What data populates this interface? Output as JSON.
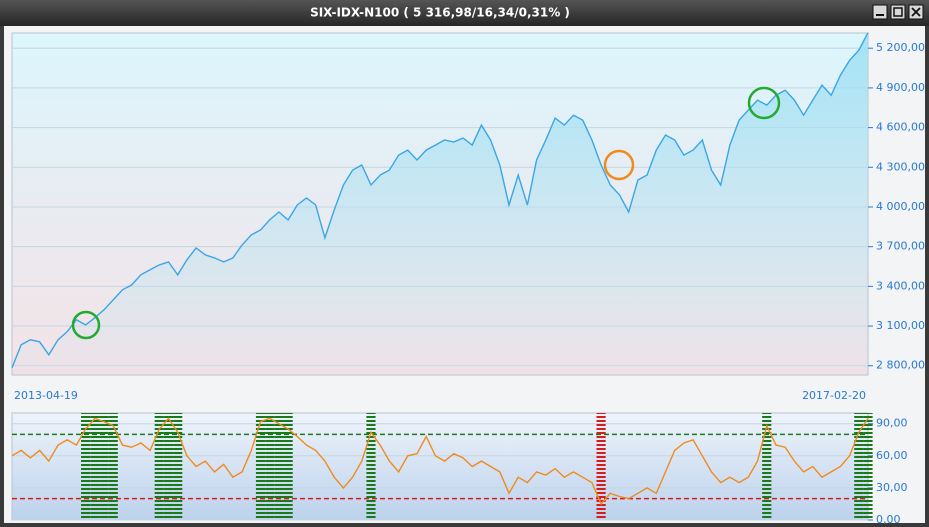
{
  "window_title": "SIX-IDX-N100 ( 5 316,98/16,34/0,31% )",
  "chart_data": [
    {
      "type": "line",
      "color": "#3aa6e6",
      "grid": true,
      "categories": [
        "2013-04-19",
        null,
        null,
        null,
        null,
        null,
        null,
        null,
        null,
        null,
        null,
        null,
        null,
        null,
        null,
        null,
        null,
        null,
        null,
        null,
        null,
        null,
        null,
        null,
        null,
        null,
        null,
        null,
        null,
        null,
        null,
        null,
        null,
        null,
        null,
        null,
        null,
        null,
        null,
        null,
        null,
        null,
        null,
        null,
        null,
        null,
        null,
        null,
        null,
        null,
        null,
        null,
        null,
        null,
        null,
        null,
        null,
        null,
        null,
        null,
        null,
        null,
        null,
        null,
        null,
        null,
        null,
        null,
        null,
        null,
        null,
        null,
        null,
        null,
        null,
        null,
        null,
        null,
        null,
        null,
        null,
        null,
        null,
        null,
        null,
        null,
        null,
        null,
        null,
        null,
        null,
        null,
        null,
        "2017-02-20"
      ],
      "values": [
        2785,
        2958,
        2996,
        2981,
        2883,
        2996,
        3057,
        3147,
        3109,
        3162,
        3223,
        3298,
        3374,
        3411,
        3487,
        3525,
        3562,
        3585,
        3487,
        3600,
        3690,
        3638,
        3615,
        3585,
        3615,
        3713,
        3789,
        3826,
        3902,
        3962,
        3902,
        4015,
        4068,
        4015,
        3766,
        3977,
        4166,
        4279,
        4317,
        4166,
        4242,
        4279,
        4392,
        4430,
        4355,
        4430,
        4468,
        4506,
        4491,
        4521,
        4468,
        4619,
        4506,
        4317,
        4015,
        4242,
        4015,
        4355,
        4506,
        4672,
        4619,
        4694,
        4657,
        4506,
        4317,
        4166,
        4091,
        3962,
        4204,
        4242,
        4430,
        4544,
        4506,
        4392,
        4430,
        4506,
        4279,
        4166,
        4468,
        4657,
        4732,
        4808,
        4770,
        4845,
        4883,
        4808,
        4694,
        4808,
        4921,
        4845,
        4996,
        5109,
        5185,
        5317
      ],
      "ylim": [
        2730,
        5315
      ],
      "yticks": [
        {
          "value": 2800,
          "label": "2 800,00"
        },
        {
          "value": 3100,
          "label": "3 100,00"
        },
        {
          "value": 3400,
          "label": "3 400,00"
        },
        {
          "value": 3700,
          "label": "3 700,00"
        },
        {
          "value": 4000,
          "label": "4 000,00"
        },
        {
          "value": 4300,
          "label": "4 300,00"
        },
        {
          "value": 4600,
          "label": "4 600,00"
        },
        {
          "value": 4900,
          "label": "4 900,00"
        },
        {
          "value": 5200,
          "label": "5 200,00"
        }
      ]
    },
    {
      "type": "oscillator",
      "color": "#f08a1c",
      "grid": true,
      "upper": 80,
      "upper_color": "#1a7a1a",
      "lower": 20,
      "lower_color": "#d81c1c",
      "values": [
        60,
        65,
        58,
        65,
        55,
        70,
        75,
        70,
        85,
        95,
        92,
        88,
        70,
        68,
        72,
        65,
        85,
        95,
        82,
        60,
        50,
        55,
        45,
        52,
        40,
        45,
        65,
        92,
        95,
        90,
        85,
        78,
        70,
        65,
        55,
        40,
        30,
        40,
        55,
        82,
        70,
        55,
        45,
        60,
        62,
        78,
        60,
        55,
        62,
        58,
        50,
        55,
        50,
        45,
        25,
        40,
        35,
        45,
        42,
        48,
        40,
        45,
        40,
        35,
        15,
        25,
        22,
        20,
        25,
        30,
        25,
        45,
        65,
        72,
        75,
        60,
        45,
        35,
        40,
        35,
        40,
        55,
        88,
        70,
        68,
        55,
        45,
        50,
        40,
        45,
        50,
        60,
        82,
        95
      ],
      "ylim": [
        0,
        100
      ],
      "yticks": [
        {
          "value": 0,
          "label": "0,00"
        },
        {
          "value": 30,
          "label": "30,00"
        },
        {
          "value": 60,
          "label": "60,00"
        },
        {
          "value": 90,
          "label": "90,00"
        }
      ]
    }
  ]
}
